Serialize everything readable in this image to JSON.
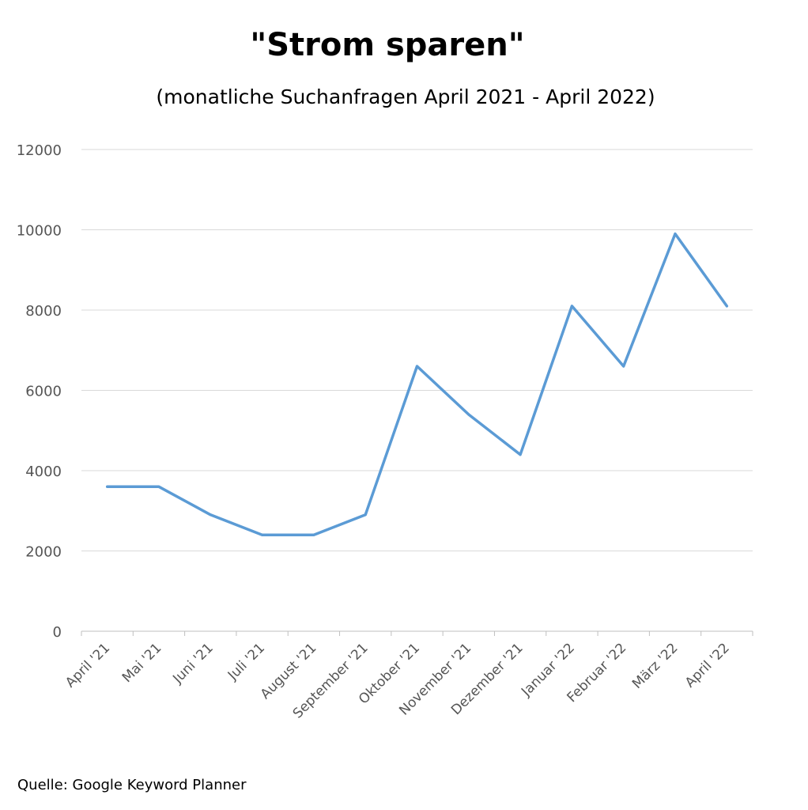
{
  "chart_data": {
    "type": "line",
    "title": "\"Strom sparen\"",
    "subtitle": "(monatliche Suchanfragen April 2021 - April 2022)",
    "categories": [
      "April '21",
      "Mai '21",
      "Juni '21",
      "Juli '21",
      "August '21",
      "September '21",
      "Oktober '21",
      "November '21",
      "Dezember '21",
      "Januar '22",
      "Februar '22",
      "März '22",
      "April '22"
    ],
    "series": [
      {
        "values": [
          3600,
          3600,
          2900,
          2400,
          2400,
          2900,
          6600,
          5400,
          4400,
          8100,
          6600,
          9900,
          8100
        ]
      }
    ],
    "y_ticks": [
      "0",
      "2000",
      "4000",
      "6000",
      "8000",
      "10000",
      "12000"
    ],
    "ylim": [
      0,
      12000
    ],
    "grid": true,
    "legend": "none",
    "line_color": "#5B9BD5",
    "source": "Quelle: Google Keyword Planner"
  }
}
